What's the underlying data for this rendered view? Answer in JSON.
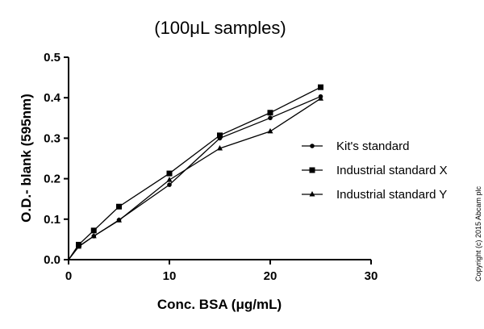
{
  "chart_data": {
    "type": "line",
    "title": "(100μL samples)",
    "xlabel": "Conc. BSA (μg/mL)",
    "ylabel": "O.D.- blank (595nm)",
    "xlim": [
      0,
      30
    ],
    "ylim": [
      0,
      0.5
    ],
    "xticks": [
      "0",
      "10",
      "20",
      "30"
    ],
    "yticks": [
      "0.0",
      "0.1",
      "0.2",
      "0.3",
      "0.4",
      "0.5"
    ],
    "grid": false,
    "legend_position": "right",
    "x": [
      0,
      1,
      2.5,
      5,
      10,
      15,
      20,
      25
    ],
    "series": [
      {
        "name": "Kit's standard",
        "marker": "circle",
        "values": [
          0,
          0.033,
          0.058,
          0.098,
          0.185,
          0.3,
          0.35,
          0.403
        ]
      },
      {
        "name": "Industrial standard X",
        "marker": "square",
        "values": [
          0,
          0.037,
          0.072,
          0.131,
          0.213,
          0.307,
          0.363,
          0.426
        ]
      },
      {
        "name": "Industrial standard Y",
        "marker": "triangle",
        "values": [
          0,
          0.032,
          0.058,
          0.097,
          0.197,
          0.275,
          0.317,
          0.398
        ]
      }
    ]
  },
  "copyright": "Copyright (c) 2015 Abcam plc"
}
